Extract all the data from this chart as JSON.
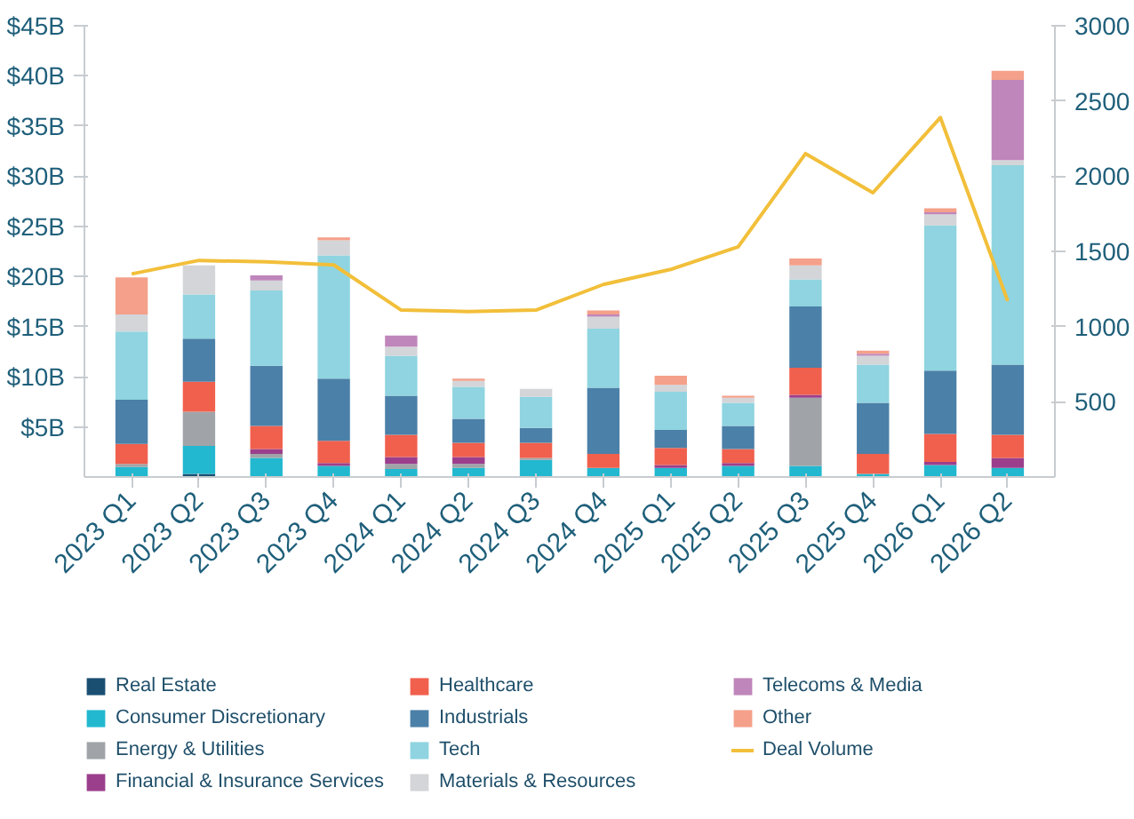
{
  "chart_data": {
    "type": "bar",
    "stacked": true,
    "categories": [
      "2023 Q1",
      "2023 Q2",
      "2023 Q3",
      "2023 Q4",
      "2024 Q1",
      "2024 Q2",
      "2024 Q3",
      "2024 Q4",
      "2025 Q1",
      "2025 Q2",
      "2025 Q3",
      "2025 Q4",
      "2026 Q1",
      "2026 Q2"
    ],
    "series": [
      {
        "name": "Real Estate",
        "color": "#1a4f72",
        "values": [
          0,
          0.3,
          0,
          0,
          0,
          0,
          0,
          0,
          0,
          0,
          0,
          0,
          0,
          0
        ]
      },
      {
        "name": "Consumer Discretionary",
        "color": "#22b8cf",
        "values": [
          1.0,
          2.8,
          1.9,
          1.1,
          0.8,
          0.9,
          1.7,
          0.9,
          0.9,
          1.1,
          1.1,
          0.3,
          1.2,
          0.9
        ]
      },
      {
        "name": "Energy & Utilities",
        "color": "#a0a4a8",
        "values": [
          0.3,
          3.4,
          0.4,
          0,
          0.5,
          0.4,
          0.2,
          0,
          0,
          0,
          6.8,
          0,
          0,
          0
        ]
      },
      {
        "name": "Financial & Insurance Services",
        "color": "#9b3f8c",
        "values": [
          0,
          0,
          0.5,
          0.3,
          0.7,
          0.7,
          0,
          0,
          0.3,
          0.3,
          0.3,
          0,
          0.3,
          1.0
        ]
      },
      {
        "name": "Healthcare",
        "color": "#f0604d",
        "values": [
          2.0,
          3.0,
          2.3,
          2.2,
          2.2,
          1.4,
          1.5,
          1.4,
          1.7,
          1.4,
          2.7,
          2.0,
          2.8,
          2.3
        ]
      },
      {
        "name": "Industrials",
        "color": "#4b80a8",
        "values": [
          4.4,
          4.3,
          6.0,
          6.2,
          3.9,
          2.4,
          1.5,
          6.6,
          1.8,
          2.3,
          6.1,
          5.1,
          6.3,
          7.0
        ]
      },
      {
        "name": "Tech",
        "color": "#8fd4e0",
        "values": [
          6.8,
          4.4,
          7.5,
          12.3,
          4.0,
          3.2,
          3.1,
          5.9,
          3.8,
          2.3,
          2.7,
          3.8,
          14.5,
          19.9
        ]
      },
      {
        "name": "Materials & Resources",
        "color": "#d3d5d8",
        "values": [
          1.7,
          2.9,
          1.0,
          1.5,
          0.9,
          0.6,
          0.8,
          1.2,
          0.7,
          0.5,
          1.4,
          0.9,
          1.1,
          0.5
        ]
      },
      {
        "name": "Telecoms & Media",
        "color": "#bf86bb",
        "values": [
          0,
          0,
          0.5,
          0,
          1.1,
          0,
          0,
          0.2,
          0,
          0,
          0,
          0.2,
          0.2,
          8.0
        ]
      },
      {
        "name": "Other",
        "color": "#f4a08a",
        "values": [
          3.7,
          0,
          0,
          0.3,
          0,
          0.2,
          0,
          0.4,
          0.9,
          0.2,
          0.7,
          0.3,
          0.4,
          0.9
        ]
      },
      {
        "name": "Deal Volume",
        "type": "line",
        "axis": "y2",
        "color": "#f2bf3a",
        "values": [
          1350,
          1440,
          1430,
          1410,
          1110,
          1100,
          1110,
          1280,
          1380,
          1530,
          2150,
          1890,
          2390,
          1170
        ]
      }
    ],
    "ylim": [
      0,
      45
    ],
    "yticks": [
      {
        "value": 5,
        "label": "$5B"
      },
      {
        "value": 10,
        "label": "$10B"
      },
      {
        "value": 15,
        "label": "$15B"
      },
      {
        "value": 20,
        "label": "$20B"
      },
      {
        "value": 25,
        "label": "$25B"
      },
      {
        "value": 30,
        "label": "$30B"
      },
      {
        "value": 35,
        "label": "$35B"
      },
      {
        "value": 40,
        "label": "$40B"
      },
      {
        "value": 45,
        "label": "$45B"
      }
    ],
    "y2lim": [
      0,
      3000
    ],
    "y2ticks": [
      500,
      1000,
      1500,
      2000,
      2500,
      3000
    ],
    "legend": "bottom",
    "grid": false
  }
}
